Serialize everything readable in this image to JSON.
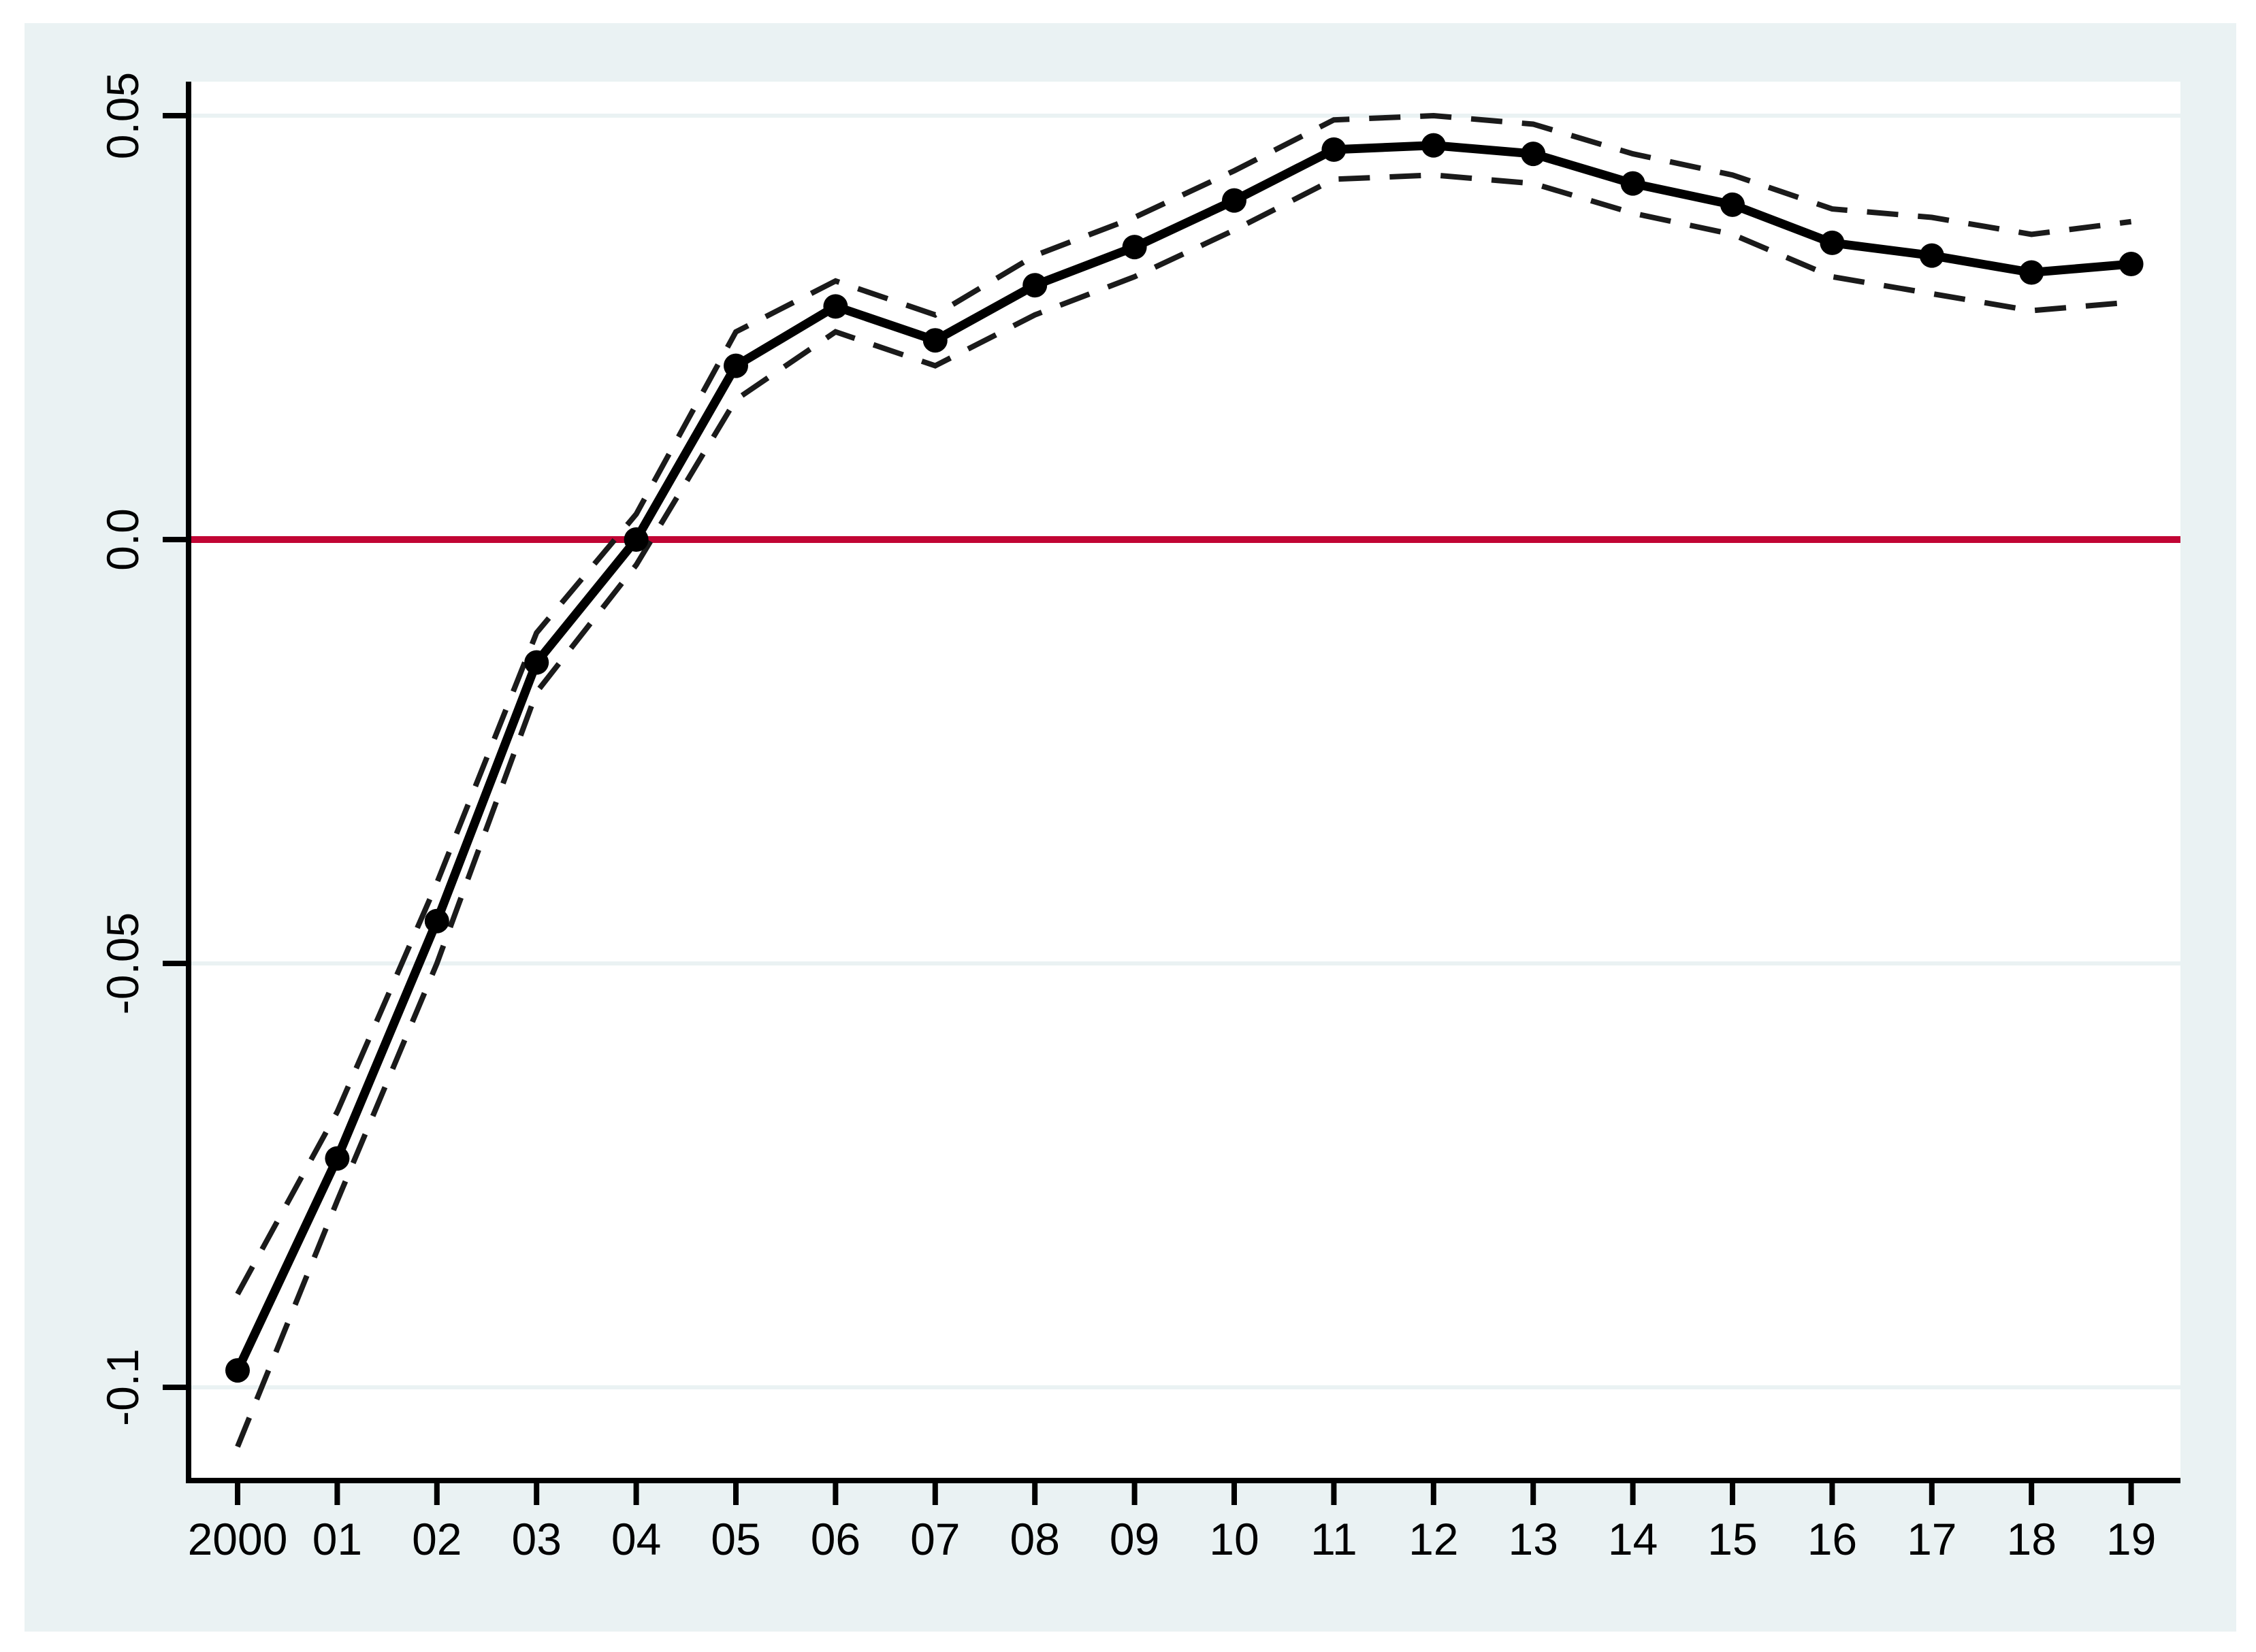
{
  "figure": {
    "background_color": "#eaf2f3",
    "plot_background_color": "#ffffff",
    "gridline_color": "#eaf2f3",
    "axis_color": "#000000",
    "series_color": "#000000",
    "ci_color": "#1a1a1a",
    "zero_line_color": "#c10534"
  },
  "chart_data": {
    "type": "line",
    "title": "",
    "xlabel": "",
    "ylabel": "",
    "x_tick_labels": [
      "2000",
      "01",
      "02",
      "03",
      "04",
      "05",
      "06",
      "07",
      "08",
      "09",
      "10",
      "11",
      "12",
      "13",
      "14",
      "15",
      "16",
      "17",
      "18",
      "19"
    ],
    "x": [
      0,
      1,
      2,
      3,
      4,
      5,
      6,
      7,
      8,
      9,
      10,
      11,
      12,
      13,
      14,
      15,
      16,
      17,
      18,
      19
    ],
    "y_ticks": [
      0.05,
      0.0,
      -0.05,
      -0.1
    ],
    "y_tick_labels": [
      "0.05",
      "0.0",
      "-0.05",
      "-0.1"
    ],
    "ylim": [
      -0.111,
      0.054
    ],
    "grid": "horizontal",
    "legend_position": "none",
    "reference_line_y": 0.0,
    "series": [
      {
        "name": "coefficient",
        "style": "solid-with-markers",
        "values": [
          -0.098,
          -0.073,
          -0.045,
          -0.0145,
          0.0,
          0.0205,
          0.0275,
          0.0235,
          0.03,
          0.0345,
          0.04,
          0.046,
          0.0465,
          0.0455,
          0.042,
          0.0395,
          0.035,
          0.0335,
          0.0315,
          0.0325
        ]
      },
      {
        "name": "ci_upper",
        "style": "dashed",
        "values": [
          -0.089,
          -0.0675,
          -0.0405,
          -0.011,
          0.003,
          0.0245,
          0.0305,
          0.0265,
          0.0335,
          0.038,
          0.0435,
          0.0495,
          0.05,
          0.049,
          0.0455,
          0.043,
          0.039,
          0.038,
          0.036,
          0.0375
        ]
      },
      {
        "name": "ci_lower",
        "style": "dashed",
        "values": [
          -0.107,
          -0.078,
          -0.05,
          -0.018,
          -0.003,
          0.0165,
          0.0245,
          0.0205,
          0.0265,
          0.031,
          0.0365,
          0.0425,
          0.043,
          0.042,
          0.0385,
          0.036,
          0.031,
          0.029,
          0.027,
          0.028
        ]
      }
    ]
  }
}
